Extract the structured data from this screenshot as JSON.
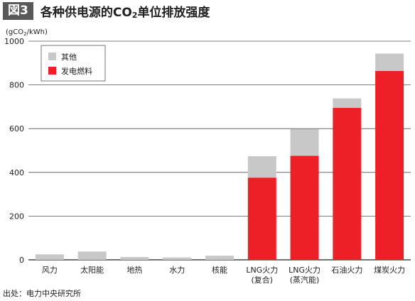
{
  "header": {
    "figure_label": "図3",
    "title_main": "各种供电源的CO",
    "title_sub": "2",
    "title_tail": "单位排放强度"
  },
  "source": "出处：电力中央研究所",
  "colors": {
    "other": "#c8c8c8",
    "fuel": "#ee2027",
    "grid": "#555555",
    "axis": "#222222"
  },
  "chart_data": {
    "type": "bar",
    "stacked": true,
    "ylabel": "(gCO2/kWh)",
    "ylim": [
      0,
      1000
    ],
    "yticks": [
      0,
      200,
      400,
      600,
      800,
      1000
    ],
    "grid": true,
    "legend_position": "top-left",
    "categories": [
      [
        "风力"
      ],
      [
        "太阳能"
      ],
      [
        "地热"
      ],
      [
        "水力"
      ],
      [
        "核能"
      ],
      [
        "LNG火力",
        "(复合)"
      ],
      [
        "LNG火力",
        "(蒸汽能)"
      ],
      [
        "石油火力"
      ],
      [
        "煤炭火力"
      ]
    ],
    "series": [
      {
        "name": "发电燃料",
        "key": "fuel",
        "values": [
          0,
          0,
          0,
          0,
          0,
          376,
          476,
          695,
          864
        ]
      },
      {
        "name": "其他",
        "key": "other",
        "values": [
          25,
          38,
          13,
          11,
          19,
          98,
          123,
          43,
          79
        ]
      }
    ],
    "legend": [
      {
        "name": "其他",
        "key": "other"
      },
      {
        "name": "发电燃料",
        "key": "fuel"
      }
    ]
  }
}
